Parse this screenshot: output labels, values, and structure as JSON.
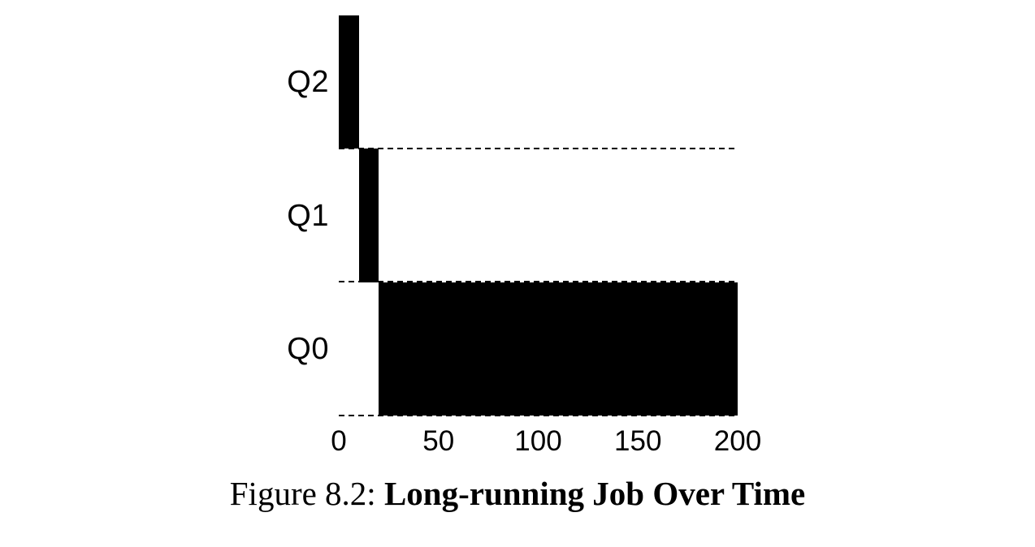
{
  "figure": {
    "caption_prefix": "Figure 8.2:",
    "caption_title": "Long-running Job Over Time"
  },
  "chart_data": {
    "type": "bar",
    "subtype": "gantt-timeline",
    "title": "Long-running Job Over Time",
    "xlabel": "",
    "ylabel": "",
    "xlim": [
      0,
      200
    ],
    "x_ticks": [
      0,
      50,
      100,
      150,
      200
    ],
    "queues": [
      "Q2",
      "Q1",
      "Q0"
    ],
    "bars": [
      {
        "queue": "Q2",
        "start": 0,
        "end": 10
      },
      {
        "queue": "Q1",
        "start": 10,
        "end": 20
      },
      {
        "queue": "Q0",
        "start": 20,
        "end": 200
      }
    ],
    "bar_color": "#000000",
    "separator_style": "dashed",
    "grid": false,
    "legend": "none"
  }
}
